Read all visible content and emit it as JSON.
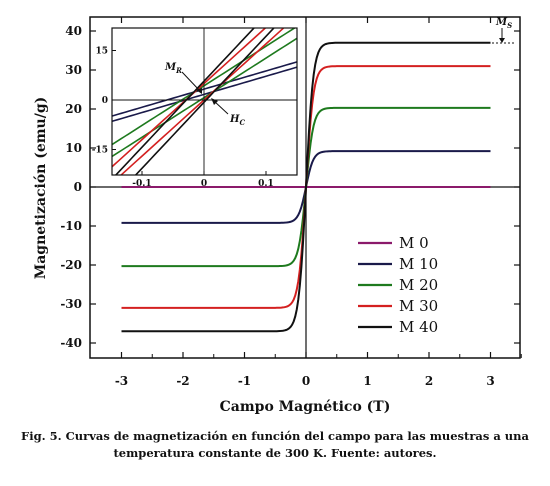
{
  "chart_data": {
    "type": "line",
    "title": "",
    "xlabel": "Campo Magnético (T)",
    "ylabel": "Magnetización (emu/g)",
    "xlim": [
      -3.3,
      3.5
    ],
    "ylim": [
      -43,
      43
    ],
    "xticks": [
      -3,
      -2,
      -1,
      0,
      1,
      2,
      3
    ],
    "yticks": [
      -40,
      -30,
      -20,
      -10,
      0,
      10,
      20,
      30,
      40
    ],
    "grid": false,
    "legend_position": "lower-right",
    "series": [
      {
        "name": "M 0",
        "color": "#8b1a6b",
        "saturation": 0.0
      },
      {
        "name": "M 10",
        "color": "#1a1a4a",
        "saturation": 9.2
      },
      {
        "name": "M 20",
        "color": "#1e7a1e",
        "saturation": 20.3
      },
      {
        "name": "M 30",
        "color": "#d42020",
        "saturation": 31.0
      },
      {
        "name": "M 40",
        "color": "#111111",
        "saturation": 37.0
      }
    ],
    "x": [
      -3,
      -2,
      -1,
      -0.5,
      -0.3,
      -0.2,
      -0.1,
      -0.05,
      0,
      0.05,
      0.1,
      0.2,
      0.3,
      0.5,
      1,
      2,
      3
    ],
    "annotations": [
      {
        "label": "M",
        "subscript": "S"
      },
      {
        "label": "M",
        "subscript": "R"
      },
      {
        "label": "H",
        "subscript": "C"
      }
    ],
    "inset": {
      "xticks": [
        -0.1,
        0,
        0.1
      ],
      "xtick_labels": [
        "-0.1",
        "0",
        "0.1"
      ],
      "yticks": [
        -15,
        0,
        15
      ],
      "xlim": [
        -0.15,
        0.15
      ],
      "ylim": [
        -22,
        22
      ]
    }
  },
  "caption": {
    "line1": "Fig. 5. Curvas de magnetización en función del campo para las muestras a una",
    "line2": "temperatura constante de 300 K. Fuente: autores."
  }
}
